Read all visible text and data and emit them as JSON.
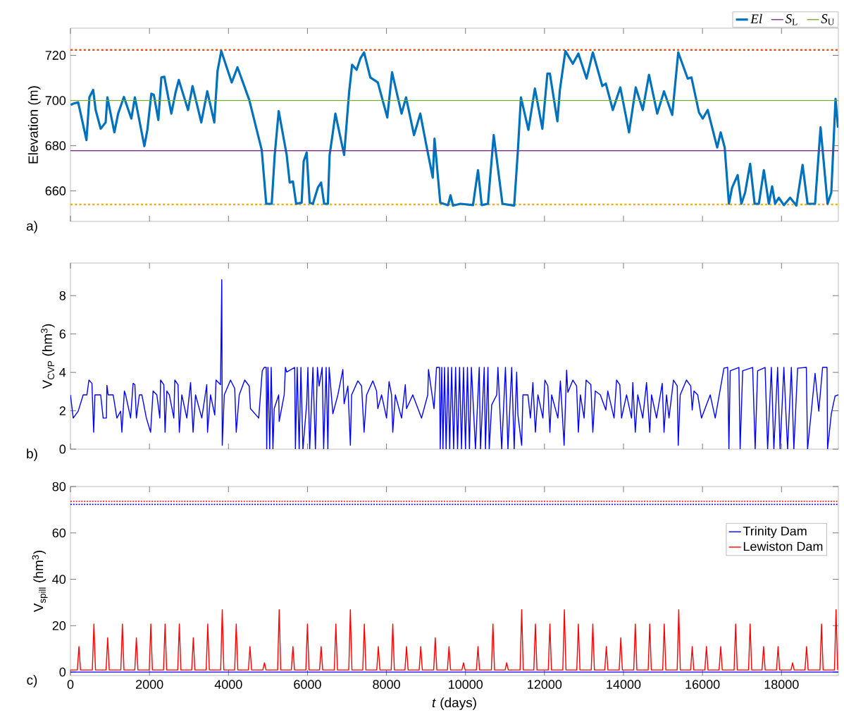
{
  "chart_data": [
    {
      "type": "line",
      "ylabel": "Elevation (m)",
      "annotations": [
        "a)"
      ],
      "xlim": [
        0,
        19440
      ],
      "xticks": [
        0,
        2000,
        4000,
        6000,
        8000,
        10000,
        12000,
        14000,
        16000,
        18000
      ],
      "ylim": [
        646.5,
        732
      ],
      "yticks": [
        660,
        680,
        700,
        720
      ],
      "tick_labels": "y",
      "legend": "top right",
      "grid": false,
      "ref_lines": [
        {
          "axis": "y",
          "value": 722.4,
          "color": "#d95319",
          "line_style": "dotted"
        },
        {
          "axis": "y",
          "value": 654.0,
          "color": "#edb120",
          "line_style": "dotted"
        }
      ],
      "series": [
        {
          "name": "*El*",
          "color": "#0072bd",
          "x": [
            6,
            70,
            196,
            259,
            405,
            480,
            575,
            638,
            765,
            891,
            935,
            1112,
            1207,
            1353,
            1542,
            1631,
            1871,
            1947,
            2048,
            2111,
            2225,
            2301,
            2377,
            2554,
            2661,
            2743,
            2977,
            3091,
            3312,
            3464,
            3641,
            3723,
            3818,
            4083,
            4229,
            4526,
            4715,
            4842,
            4956,
            5095,
            5171,
            5272,
            5474,
            5550,
            5632,
            5714,
            5853,
            5904,
            5980,
            6056,
            6138,
            6264,
            6346,
            6422,
            6517,
            6561,
            6643,
            6707,
            6928,
            7054,
            7130,
            7244,
            7339,
            7433,
            7591,
            7781,
            8021,
            8142,
            8382,
            8495,
            8698,
            8856,
            9014,
            9172,
            9216,
            9362,
            9558,
            9621,
            9684,
            9874,
            10190,
            10317,
            10411,
            10569,
            10715,
            10936,
            11233,
            11328,
            11404,
            11593,
            11758,
            11947,
            12074,
            12137,
            12327,
            12390,
            12529,
            12719,
            12858,
            13066,
            13224,
            13464,
            13553,
            13730,
            13920,
            14141,
            14311,
            14488,
            14646,
            14855,
            15026,
            15234,
            15386,
            15626,
            15721,
            15911,
            16006,
            16132,
            16372,
            16461,
            16562,
            16669,
            16751,
            16890,
            16985,
            17080,
            17206,
            17320,
            17427,
            17554,
            17680,
            17763,
            17839,
            17933,
            18060,
            18218,
            18376,
            18534,
            18660,
            18850,
            18989,
            19166,
            19261,
            19368,
            19430
          ],
          "values": [
            698.0,
            698.6,
            699.2,
            694.2,
            682.5,
            701.4,
            704.7,
            695.8,
            687.5,
            690.3,
            701.4,
            685.9,
            694.2,
            701.6,
            692.0,
            701.4,
            679.8,
            687.0,
            703.0,
            702.5,
            691.4,
            710.2,
            710.5,
            694.2,
            703.6,
            709.1,
            695.8,
            706.4,
            690.3,
            704.1,
            690.3,
            713.0,
            721.9,
            708.0,
            714.7,
            700.3,
            687.0,
            678.1,
            654.3,
            654.3,
            675.9,
            695.3,
            675.9,
            663.7,
            664.2,
            654.3,
            654.8,
            673.1,
            677.0,
            654.8,
            654.3,
            661.5,
            663.7,
            654.3,
            654.3,
            675.9,
            685.9,
            694.2,
            675.9,
            703.6,
            715.8,
            713.6,
            718.6,
            721.3,
            710.2,
            708.0,
            692.5,
            712.5,
            694.2,
            701.4,
            684.7,
            694.2,
            679.8,
            665.9,
            683.1,
            654.8,
            653.7,
            658.1,
            653.5,
            654.3,
            653.7,
            669.2,
            653.7,
            654.3,
            684.7,
            654.3,
            653.5,
            678.1,
            701.4,
            687.0,
            705.3,
            687.5,
            711.9,
            711.9,
            690.8,
            704.7,
            721.9,
            716.3,
            720.8,
            709.7,
            721.3,
            706.4,
            707.5,
            695.8,
            705.8,
            685.9,
            705.8,
            695.8,
            711.4,
            694.2,
            704.1,
            693.6,
            721.3,
            709.7,
            710.2,
            694.7,
            692.0,
            695.8,
            679.2,
            685.9,
            679.2,
            654.3,
            661.5,
            667.0,
            654.3,
            659.3,
            672.0,
            654.3,
            654.3,
            669.2,
            654.3,
            662.0,
            654.3,
            657.0,
            653.7,
            657.0,
            653.5,
            671.5,
            654.3,
            654.3,
            688.1,
            654.3,
            659.3,
            700.8,
            688.0
          ]
        },
        {
          "name": "*S*$_{L}$",
          "color": "#7e2f8e",
          "x": [
            0,
            19440
          ],
          "values": [
            677.8,
            677.8
          ]
        },
        {
          "name": "*S*$_{U}$",
          "color": "#77ac30",
          "x": [
            0,
            19440
          ],
          "values": [
            700,
            700
          ]
        }
      ]
    },
    {
      "type": "line",
      "ylabel": "V$_{CVP}$ (hm$^{3}$)",
      "annotations": [
        "b)"
      ],
      "xlim": [
        0,
        19440
      ],
      "xticks": [
        0,
        2000,
        4000,
        6000,
        8000,
        10000,
        12000,
        14000,
        16000,
        18000
      ],
      "ylim": [
        0,
        9.7
      ],
      "yticks": [
        0,
        2,
        4,
        6,
        8
      ],
      "tick_labels": "y",
      "grid": false,
      "series": [
        {
          "color": "#0000ff",
          "x": [
            0,
            70,
            196,
            322,
            417,
            468,
            544,
            575,
            588,
            619,
            765,
            828,
            910,
            923,
            954,
            1081,
            1176,
            1271,
            1302,
            1365,
            1397,
            1523,
            1586,
            1631,
            1669,
            1745,
            1808,
            1922,
            2029,
            2092,
            2187,
            2263,
            2282,
            2364,
            2395,
            2440,
            2503,
            2617,
            2642,
            2724,
            2756,
            2819,
            2946,
            3041,
            3104,
            3167,
            3325,
            3451,
            3470,
            3546,
            3653,
            3685,
            3799,
            3831,
            3843,
            3894,
            4052,
            4159,
            4197,
            4273,
            4412,
            4526,
            4557,
            4766,
            4855,
            4905,
            4956,
            4968,
            5000,
            5044,
            5082,
            5126,
            5158,
            5272,
            5284,
            5411,
            5442,
            5474,
            5676,
            5695,
            5740,
            5790,
            5834,
            5885,
            5980,
            6011,
            6056,
            6138,
            6201,
            6252,
            6296,
            6372,
            6410,
            6473,
            6517,
            6549,
            6643,
            6770,
            6896,
            6928,
            7023,
            7086,
            7118,
            7276,
            7370,
            7433,
            7497,
            7655,
            7749,
            7781,
            7876,
            8002,
            8066,
            8129,
            8160,
            8224,
            8382,
            8477,
            8508,
            8666,
            8888,
            9045,
            9064,
            9204,
            9267,
            9342,
            9361,
            9400,
            9430,
            9470,
            9510,
            9560,
            9600,
            9650,
            9700,
            9750,
            9800,
            9850,
            9900,
            9950,
            10000,
            10050,
            10100,
            10150,
            10253,
            10348,
            10380,
            10475,
            10506,
            10569,
            10601,
            10664,
            10791,
            10822,
            10917,
            11012,
            11075,
            11170,
            11233,
            11296,
            11328,
            11423,
            11454,
            11581,
            11644,
            11707,
            11770,
            11834,
            11960,
            12011,
            12086,
            12137,
            12181,
            12339,
            12403,
            12497,
            12560,
            12592,
            12719,
            12813,
            12858,
            12908,
            13003,
            13054,
            13174,
            13224,
            13287,
            13414,
            13553,
            13603,
            13761,
            13825,
            13907,
            13951,
            14078,
            14204,
            14236,
            14299,
            14362,
            14488,
            14583,
            14665,
            14710,
            14836,
            14981,
            15026,
            15089,
            15152,
            15266,
            15361,
            15386,
            15436,
            15594,
            15702,
            15740,
            15784,
            15879,
            15974,
            16195,
            16322,
            16543,
            16638,
            16669,
            16701,
            16922,
            16953,
            17017,
            17270,
            17333,
            17396,
            17585,
            17649,
            17744,
            17807,
            17902,
            17965,
            18060,
            18154,
            18250,
            18313,
            18408,
            18629,
            18660,
            18850,
            18900,
            18944,
            19040,
            19153,
            19166,
            19261,
            19356,
            19440
          ],
          "values": [
            2.83,
            1.62,
            1.98,
            2.83,
            2.83,
            3.6,
            3.43,
            1.62,
            0.88,
            2.83,
            2.83,
            1.62,
            1.62,
            3.33,
            2.83,
            2.83,
            1.62,
            1.98,
            0.88,
            3.03,
            2.83,
            1.62,
            3.43,
            3.36,
            1.62,
            2.83,
            2.83,
            1.62,
            0.88,
            3.03,
            2.83,
            1.62,
            3.6,
            3.36,
            0.88,
            3.03,
            2.83,
            1.62,
            3.6,
            3.36,
            0.88,
            2.83,
            1.62,
            3.47,
            0.88,
            2.83,
            1.62,
            3.36,
            0.88,
            2.83,
            1.78,
            3.6,
            3.36,
            8.83,
            0.2,
            2.83,
            3.6,
            3.16,
            0.88,
            2.83,
            3.6,
            3.29,
            2.11,
            1.62,
            4.08,
            4.26,
            4.26,
            0,
            4.26,
            0,
            4.26,
            0,
            2.11,
            2.83,
            1.45,
            2.83,
            4.26,
            4.02,
            4.26,
            0,
            4.26,
            0,
            4.26,
            0,
            2.37,
            4.26,
            0,
            4.26,
            0,
            4.26,
            3.29,
            4.26,
            0,
            4.26,
            0,
            4.26,
            1.84,
            2.83,
            4.15,
            2.37,
            3.29,
            0.2,
            2.83,
            3.56,
            3.29,
            0.88,
            2.83,
            3.56,
            3.03,
            2.11,
            2.83,
            1.62,
            3.52,
            2.83,
            0.88,
            2.83,
            1.62,
            3.36,
            2.11,
            2.83,
            1.62,
            2.83,
            4.15,
            2.11,
            4.26,
            4.26,
            0,
            4.26,
            0,
            4.26,
            0,
            4.26,
            0,
            4.26,
            0,
            4.26,
            0,
            4.26,
            0,
            4.26,
            0,
            4.26,
            0,
            4.26,
            0,
            4.26,
            0,
            4.26,
            0,
            4.26,
            0,
            2.31,
            2.83,
            4.26,
            0,
            4.26,
            0,
            4.26,
            0,
            4.02,
            1.78,
            0.2,
            2.83,
            2.83,
            1.62,
            3.47,
            0.88,
            2.83,
            1.62,
            3.6,
            3.29,
            0.88,
            2.83,
            1.62,
            3.56,
            0.2,
            4.12,
            2.96,
            3.6,
            3.29,
            0.88,
            2.83,
            1.62,
            3.6,
            3.36,
            0.88,
            3.03,
            2.83,
            2.04,
            3.03,
            1.62,
            3.6,
            3.36,
            1.62,
            2.83,
            1.62,
            3.47,
            0.88,
            2.83,
            1.62,
            3.47,
            0.88,
            2.83,
            1.62,
            3.43,
            0.88,
            2.83,
            1.62,
            3.6,
            3.29,
            0.2,
            2.83,
            3.6,
            3.29,
            2.04,
            3.03,
            2.83,
            1.62,
            2.83,
            1.62,
            4.22,
            4.26,
            0,
            4.08,
            4.26,
            0,
            4.08,
            4.26,
            0,
            4.08,
            4.26,
            0,
            4.26,
            0,
            4.26,
            0,
            4.26,
            0,
            4.26,
            0,
            4.22,
            4.26,
            0,
            3.95,
            2.9,
            1.98,
            4.26,
            4.26,
            0,
            1.84,
            2.77,
            2.83
          ]
        }
      ]
    },
    {
      "type": "line",
      "xlabel": "*t* (days)",
      "ylabel": "V$_{spill}$ (hm$^{3}$)",
      "annotations": [
        "c)"
      ],
      "xlim": [
        0,
        19440
      ],
      "xticks": [
        0,
        2000,
        4000,
        6000,
        8000,
        10000,
        12000,
        14000,
        16000,
        18000
      ],
      "ylim": [
        -1.5,
        80
      ],
      "yticks": [
        0,
        20,
        40,
        60,
        80
      ],
      "legend": "right",
      "grid": false,
      "ref_lines": [
        {
          "axis": "y",
          "value": 73.6,
          "color": "#ff0000",
          "line_style": "dotted"
        },
        {
          "axis": "y",
          "value": 72.3,
          "color": "#0000ff",
          "line_style": "dotted"
        }
      ],
      "series": [
        {
          "name": "Trinity Dam",
          "color": "#0000ff",
          "x": [
            0,
            19440
          ],
          "values": [
            0,
            0
          ]
        },
        {
          "name": "Lewiston Dam",
          "color": "#ff0000",
          "x": [
            0,
            175,
            215,
            255,
            554,
            594,
            634,
            902,
            942,
            982,
            1275,
            1315,
            1355,
            1629,
            1669,
            1709,
            1995,
            2035,
            2075,
            2356,
            2396,
            2436,
            2716,
            2756,
            2796,
            3070,
            3110,
            3150,
            3436,
            3476,
            3516,
            3803,
            3843,
            3883,
            4157,
            4197,
            4237,
            4505,
            4545,
            4585,
            4871,
            4911,
            4951,
            5244,
            5284,
            5324,
            5592,
            5632,
            5672,
            5959,
            5999,
            6039,
            6306,
            6346,
            6386,
            6679,
            6719,
            6759,
            7046,
            7086,
            7126,
            7400,
            7440,
            7480,
            7754,
            7794,
            7834,
            8120,
            8160,
            8200,
            8468,
            8508,
            8548,
            8828,
            8868,
            8908,
            9195,
            9235,
            9275,
            9543,
            9583,
            9623,
            9910,
            9950,
            9990,
            10277,
            10317,
            10357,
            10656,
            10696,
            10736,
            11004,
            11044,
            11084,
            11383,
            11423,
            11463,
            11730,
            11770,
            11810,
            12097,
            12137,
            12177,
            12464,
            12504,
            12544,
            12818,
            12858,
            12898,
            13184,
            13224,
            13264,
            13526,
            13566,
            13606,
            13892,
            13932,
            13972,
            14259,
            14299,
            14339,
            14625,
            14665,
            14705,
            14992,
            15032,
            15072,
            15359,
            15399,
            15439,
            15700,
            15740,
            15780,
            16060,
            16100,
            16140,
            16421,
            16461,
            16501,
            16800,
            16840,
            16880,
            17166,
            17206,
            17246,
            17507,
            17547,
            17587,
            17874,
            17914,
            17954,
            18241,
            18281,
            18321,
            18595,
            18635,
            18675,
            18974,
            19014,
            19054,
            19341,
            19381,
            19421
          ],
          "values": [
            0.9,
            0.9,
            11,
            0.9,
            0.9,
            20.7,
            0.9,
            0.9,
            14.8,
            0.9,
            0.9,
            20.7,
            0.9,
            0.9,
            14.8,
            0.9,
            0.9,
            20.7,
            0.9,
            0.9,
            20.7,
            0.9,
            0.9,
            20.7,
            0.9,
            0.9,
            14.8,
            0.9,
            0.9,
            20.7,
            0.9,
            0.9,
            26.9,
            0.9,
            0.9,
            20.7,
            0.9,
            0.9,
            11,
            0.9,
            0.9,
            4,
            0.9,
            0.9,
            26.9,
            0.9,
            0.9,
            11,
            0.9,
            0.9,
            20.7,
            0.9,
            0.9,
            11,
            0.9,
            0.9,
            20.7,
            0.9,
            0.9,
            26.9,
            0.9,
            0.9,
            20.7,
            0.9,
            0.9,
            11,
            0.9,
            0.9,
            20.7,
            0.9,
            0.9,
            11,
            0.9,
            0.9,
            11,
            0.9,
            0.9,
            14.8,
            0.9,
            0.9,
            11,
            0.9,
            0.9,
            4,
            0.9,
            0.9,
            11,
            0.9,
            0.9,
            20.7,
            0.9,
            0.9,
            4,
            0.9,
            0.9,
            26.9,
            0.9,
            0.9,
            20.7,
            0.9,
            0.9,
            20.7,
            0.9,
            0.9,
            26.9,
            0.9,
            0.9,
            20.7,
            0.9,
            0.9,
            20.7,
            0.9,
            0.9,
            11,
            0.9,
            0.9,
            14.8,
            0.9,
            0.9,
            20.7,
            0.9,
            0.9,
            20.7,
            0.9,
            0.9,
            20.7,
            0.9,
            0.9,
            26.9,
            0.9,
            0.9,
            11,
            0.9,
            0.9,
            11,
            0.9,
            0.9,
            11,
            0.9,
            0.9,
            20.7,
            0.9,
            0.9,
            20.7,
            0.9,
            0.9,
            11,
            0.9,
            0.9,
            11,
            0.9,
            0.9,
            4,
            0.9,
            0.9,
            11,
            0.9,
            0.9,
            20.7,
            0.9,
            0.9,
            26.9,
            0.9
          ]
        }
      ]
    }
  ]
}
